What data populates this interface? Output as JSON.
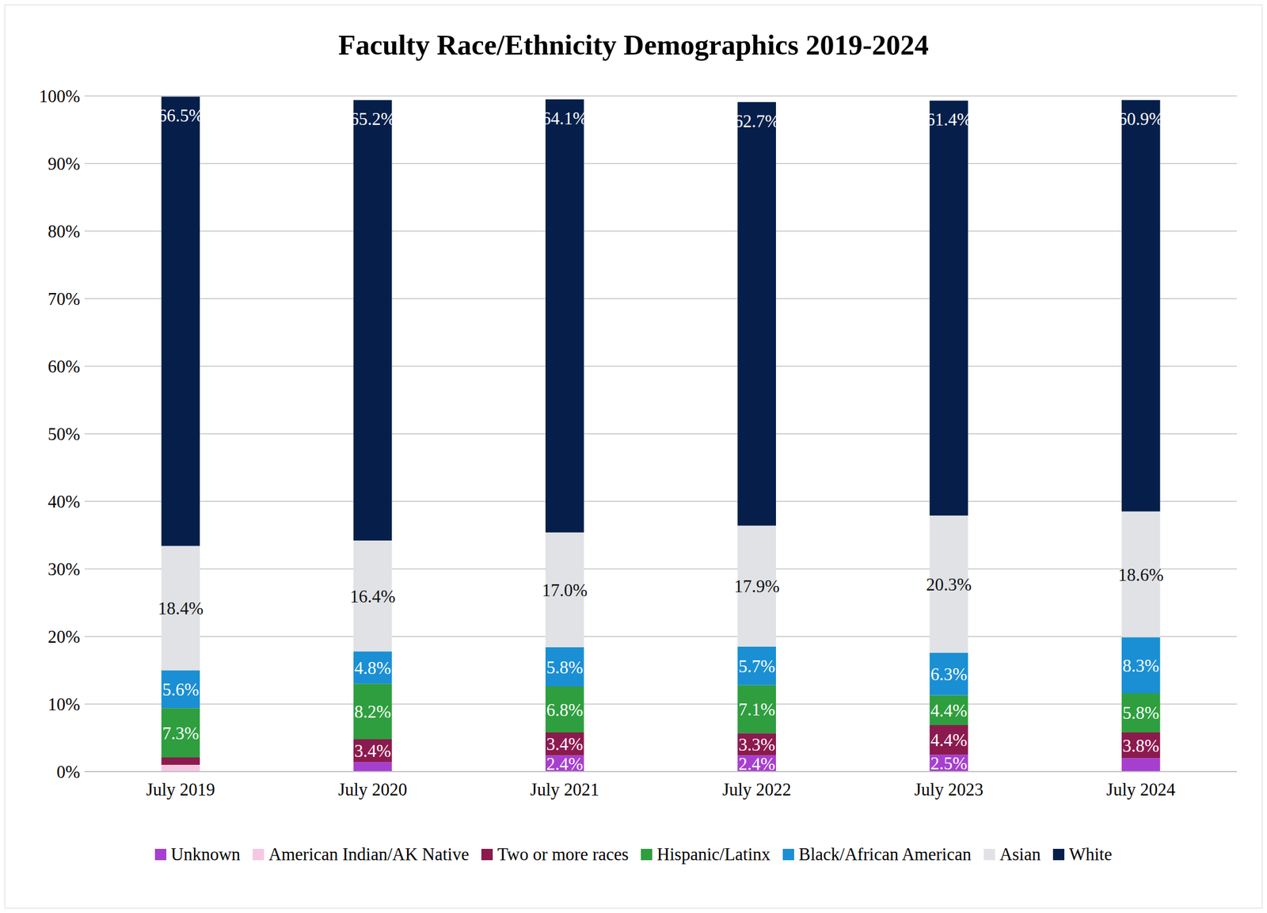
{
  "chart_data": {
    "type": "bar",
    "title": "Faculty Race/Ethnicity Demographics 2019-2024",
    "categories": [
      "July 2019",
      "July 2020",
      "July 2021",
      "July 2022",
      "July 2023",
      "July 2024"
    ],
    "stacked": true,
    "data_labels": true,
    "grid": true,
    "legend": "bottom",
    "ylim": [
      0,
      100
    ],
    "yticks": [
      {
        "value": 0,
        "label": "0%"
      },
      {
        "value": 10,
        "label": "10%"
      },
      {
        "value": 20,
        "label": "20%"
      },
      {
        "value": 30,
        "label": "30%"
      },
      {
        "value": 40,
        "label": "40%"
      },
      {
        "value": 50,
        "label": "50%"
      },
      {
        "value": 60,
        "label": "60%"
      },
      {
        "value": 70,
        "label": "70%"
      },
      {
        "value": 80,
        "label": "80%"
      },
      {
        "value": 90,
        "label": "90%"
      },
      {
        "value": 100,
        "label": "100%"
      }
    ],
    "series": [
      {
        "name": "Unknown",
        "color": "#a63fd0",
        "values": [
          0,
          1.4,
          2.4,
          2.4,
          2.5,
          2.0
        ],
        "value_labels": [
          null,
          null,
          "2.4%",
          "2.4%",
          "2.5%",
          null
        ]
      },
      {
        "name": "American Indian/AK Native",
        "color": "#f5c8e2",
        "values": [
          1.0,
          0,
          0,
          0,
          0,
          0
        ],
        "value_labels": [
          null,
          null,
          null,
          null,
          null,
          null
        ]
      },
      {
        "name": "Two or more races",
        "color": "#8b1a4f",
        "values": [
          1.1,
          3.4,
          3.4,
          3.3,
          4.4,
          3.8
        ],
        "value_labels": [
          null,
          "3.4%",
          "3.4%",
          "3.3%",
          "4.4%",
          "3.8%"
        ]
      },
      {
        "name": "Hispanic/Latinx",
        "color": "#2f9e3f",
        "values": [
          7.3,
          8.2,
          6.8,
          7.1,
          4.4,
          5.8
        ],
        "value_labels": [
          "7.3%",
          "8.2%",
          "6.8%",
          "7.1%",
          "4.4%",
          "5.8%"
        ]
      },
      {
        "name": "Black/African American",
        "color": "#1b8fd3",
        "values": [
          5.6,
          4.8,
          5.8,
          5.7,
          6.3,
          8.3
        ],
        "value_labels": [
          "5.6%",
          "4.8%",
          "5.8%",
          "5.7%",
          "6.3%",
          "8.3%"
        ]
      },
      {
        "name": "Asian",
        "color": "#e1e2e6",
        "values": [
          18.4,
          16.4,
          17.0,
          17.9,
          20.3,
          18.6
        ],
        "value_labels": [
          "18.4%",
          "16.4%",
          "17.0%",
          "17.9%",
          "20.3%",
          "18.6%"
        ]
      },
      {
        "name": "White",
        "color": "#061f4a",
        "values": [
          66.5,
          65.2,
          64.1,
          62.7,
          61.4,
          60.9
        ],
        "value_labels": [
          "66.5%",
          "65.2%",
          "64.1%",
          "62.7%",
          "61.4%",
          "60.9%"
        ]
      }
    ]
  }
}
